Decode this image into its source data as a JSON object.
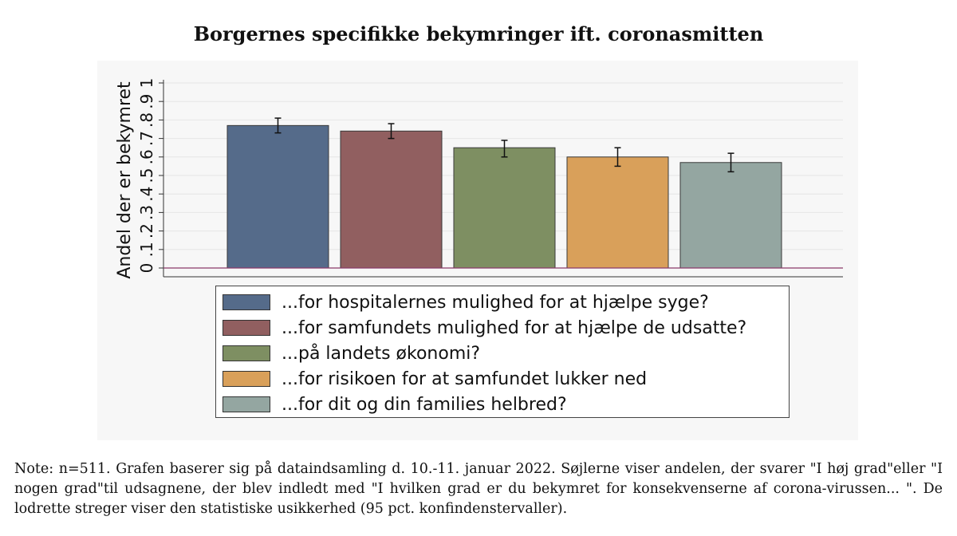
{
  "chart_data": {
    "type": "bar",
    "title": "Borgernes specifikke bekymringer ift. coronasmitten",
    "ylabel": "Andel der er bekymret",
    "xlabel": "",
    "ylim": [
      0,
      1
    ],
    "yticks": [
      "0",
      ".1",
      ".2",
      ".3",
      ".4",
      ".5",
      ".6",
      ".7",
      ".8",
      ".9",
      "1"
    ],
    "categories": [
      "...for hospitalernes mulighed for at hjælpe syge?",
      "...for samfundets mulighed for at hjælpe de udsatte?",
      "...på landets økonomi?",
      "...for risikoen for at samfundet lukker ned",
      "...for dit og din families helbred?"
    ],
    "values": [
      0.77,
      0.74,
      0.65,
      0.6,
      0.57
    ],
    "ci_low": [
      0.73,
      0.7,
      0.6,
      0.55,
      0.52
    ],
    "ci_high": [
      0.81,
      0.78,
      0.69,
      0.65,
      0.62
    ],
    "colors": [
      "#556b8a",
      "#915f60",
      "#7e8f62",
      "#d9a05a",
      "#94a6a1"
    ],
    "legend_position": "bottom"
  },
  "note": "Note: n=511. Grafen baserer sig på dataindsamling d. 10.-11. januar 2022. Søjlerne viser andelen, der svarer \"I høj grad\"eller \"I nogen grad\"til udsagnene, der blev indledt med \"I hvilken grad er du bekymret for konsekvenserne af corona-virussen... \". De lodrette streger viser den statistiske usikkerhed (95 pct. konfindenstervaller)."
}
